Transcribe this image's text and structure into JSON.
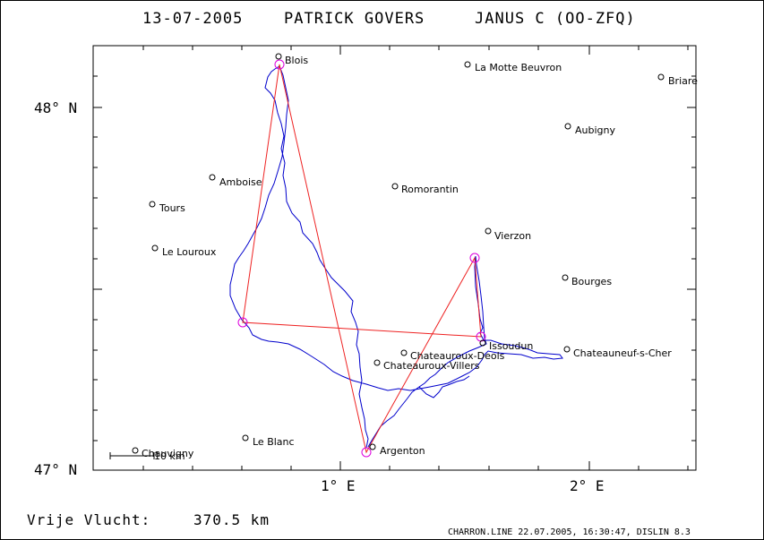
{
  "header": {
    "date": "13-07-2005",
    "pilot": "PATRICK GOVERS",
    "glider": "JANUS C (OO-ZFQ)"
  },
  "axes": {
    "lat_labels": [
      "48° N",
      "47° N"
    ],
    "lon_labels": [
      "1° E",
      "2° E"
    ]
  },
  "towns": [
    {
      "name": "Blois"
    },
    {
      "name": "La Motte Beuvron"
    },
    {
      "name": "Briare"
    },
    {
      "name": "Aubigny"
    },
    {
      "name": "Amboise"
    },
    {
      "name": "Romorantin"
    },
    {
      "name": "Tours"
    },
    {
      "name": "Vierzon"
    },
    {
      "name": "Le Louroux"
    },
    {
      "name": "Bourges"
    },
    {
      "name": "Issoudun"
    },
    {
      "name": "Chateauneuf-s-Cher"
    },
    {
      "name": "Chateauroux-Deols"
    },
    {
      "name": "Chateauroux-Villers"
    },
    {
      "name": "Le Blanc"
    },
    {
      "name": "Argenton"
    },
    {
      "name": "Chauvigny"
    }
  ],
  "scale_bar": {
    "label": "10 km"
  },
  "footer": {
    "label": "Vrije Vlucht:",
    "distance": "370.5 km"
  },
  "credit": "CHARRON.LINE 22.07.2005, 16:30:47, DISLIN 8.3",
  "colors": {
    "track": "#0000cc",
    "task": "#ee2222",
    "turnpoint": "#dd00dd",
    "frame": "#000000"
  }
}
